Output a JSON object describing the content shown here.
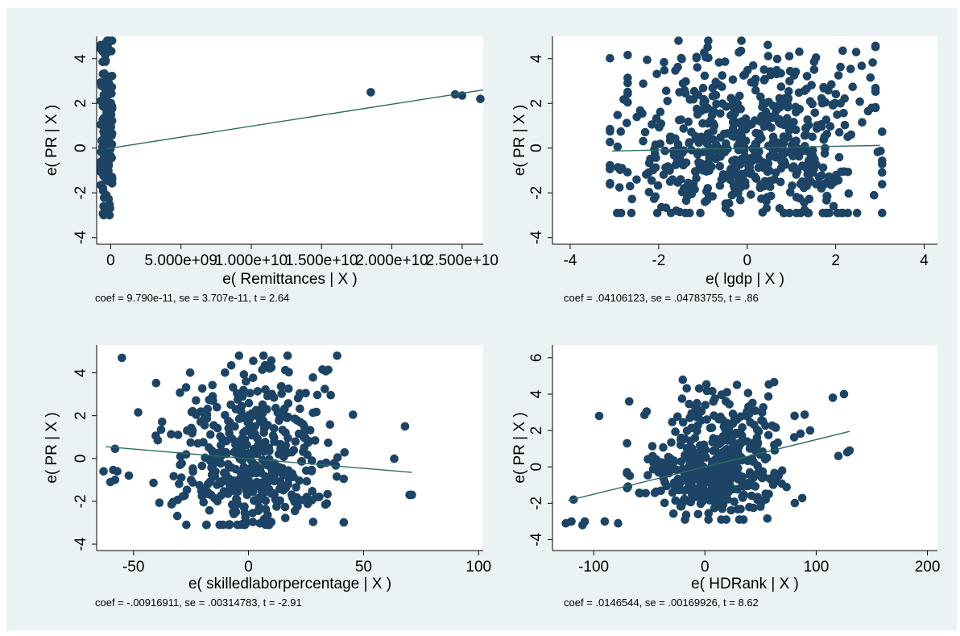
{
  "colors": {
    "figure_bg": "#eaf2f3",
    "marker": "#1d4464",
    "fit_line": "#2d6b63"
  },
  "chart_data": [
    {
      "type": "scatter",
      "xlabel": "e( Remittances | X )",
      "ylabel": "e( PR | X )",
      "caption": "coef = 9.790e-11, se = 3.707e-11, t = 2.64",
      "x_ticks": [
        "0",
        "5.000e+09",
        "1.000e+10",
        "1.500e+10",
        "2.000e+10",
        "2.500e+10"
      ],
      "x_tick_values": [
        0,
        5000000000,
        10000000000,
        15000000000,
        20000000000,
        25000000000
      ],
      "y_ticks": [
        "-4",
        "-2",
        "0",
        "2",
        "4"
      ],
      "xlim": [
        -1000000000,
        26500000000
      ],
      "ylim": [
        -4.3,
        5
      ],
      "fit": {
        "x": [
          -300000000,
          26500000000
        ],
        "y": [
          -0.03,
          2.6
        ]
      },
      "seed": 11,
      "clusters": [
        {
          "n": 150,
          "cx": -300000000,
          "sx": 260000000,
          "cy": 0.9,
          "sy": 2.3,
          "xmin": -700000000,
          "xmax": 100000000,
          "ymin": -3.0,
          "ymax": 4.8
        },
        {
          "n": 8,
          "cx": -250000000,
          "sx": 50000000,
          "cy": 4.6,
          "sy": 0.2,
          "xmin": -500000000,
          "xmax": 0,
          "ymin": 4.2,
          "ymax": 4.8
        }
      ],
      "points": [
        [
          18500000000,
          2.5
        ],
        [
          24500000000,
          2.4
        ],
        [
          25000000000,
          2.35
        ],
        [
          26300000000,
          2.2
        ]
      ]
    },
    {
      "type": "scatter",
      "xlabel": "e( lgdp | X )",
      "ylabel": "e( PR | X )",
      "caption": "coef = .04106123, se = .04783755, t = .86",
      "x_ticks": [
        "-4",
        "-2",
        "0",
        "2",
        "4"
      ],
      "x_tick_values": [
        -4,
        -2,
        0,
        2,
        4
      ],
      "y_ticks": [
        "-4",
        "-2",
        "0",
        "2",
        "4"
      ],
      "xlim": [
        -4.4,
        4.3
      ],
      "ylim": [
        -4.3,
        5
      ],
      "fit": {
        "x": [
          -3.05,
          3.0
        ],
        "y": [
          -0.13,
          0.12
        ]
      },
      "seed": 22,
      "clusters": [
        {
          "n": 480,
          "cx": 0,
          "sx": 1.35,
          "cy": -0.4,
          "sy": 1.55,
          "xmin": -3.1,
          "xmax": 3.05,
          "ymin": -2.9,
          "ymax": 4.8
        },
        {
          "n": 140,
          "cx": 0.1,
          "sx": 1.5,
          "cy": 2.6,
          "sy": 1.2,
          "xmin": -2.7,
          "xmax": 2.9,
          "ymin": 0.5,
          "ymax": 4.8
        }
      ],
      "points": []
    },
    {
      "type": "scatter",
      "xlabel": "e( skilledlaborpercentage | X )",
      "ylabel": "e( PR | X )",
      "caption": "coef = -.00916911, se = .00314783, t = -2.91",
      "x_ticks": [
        "-50",
        "0",
        "50",
        "100"
      ],
      "x_tick_values": [
        -50,
        0,
        50,
        100
      ],
      "y_ticks": [
        "-4",
        "-2",
        "0",
        "2",
        "4"
      ],
      "xlim": [
        -66,
        102
      ],
      "ylim": [
        -4.3,
        5.3
      ],
      "fit": {
        "x": [
          -62,
          71
        ],
        "y": [
          0.55,
          -0.65
        ]
      },
      "seed": 33,
      "clusters": [
        {
          "n": 360,
          "cx": 2,
          "sx": 17,
          "cy": -0.6,
          "sy": 1.4,
          "xmin": -62,
          "xmax": 71,
          "ymin": -3.1,
          "ymax": 4.8
        },
        {
          "n": 110,
          "cx": 3,
          "sx": 19,
          "cy": 2.4,
          "sy": 1.3,
          "xmin": -55,
          "xmax": 70,
          "ymin": 0.5,
          "ymax": 4.8
        }
      ],
      "points": [
        [
          -63,
          -0.6
        ],
        [
          -60,
          -1.1
        ],
        [
          -58,
          -1.0
        ],
        [
          -57,
          -0.6
        ],
        [
          -55,
          4.7
        ],
        [
          -52,
          -0.8
        ],
        [
          -58,
          0.45
        ],
        [
          68,
          1.5
        ],
        [
          70,
          -1.7
        ],
        [
          71,
          -1.7
        ]
      ]
    },
    {
      "type": "scatter",
      "xlabel": "e( HDRank | X )",
      "ylabel": "e( PR | X )",
      "caption": "coef = .0146544, se = .00169926, t = 8.62",
      "x_ticks": [
        "-100",
        "0",
        "100",
        "200"
      ],
      "x_tick_values": [
        -100,
        0,
        100,
        200
      ],
      "y_ticks": [
        "-4",
        "-2",
        "0",
        "2",
        "4",
        "6"
      ],
      "xlim": [
        -137,
        209
      ],
      "ylim": [
        -4.6,
        6.7
      ],
      "fit": {
        "x": [
          -123,
          130
        ],
        "y": [
          -1.85,
          1.95
        ]
      },
      "seed": 44,
      "clusters": [
        {
          "n": 360,
          "cx": 5,
          "sx": 32,
          "cy": -0.3,
          "sy": 1.3,
          "xmin": -70,
          "xmax": 90,
          "ymin": -2.9,
          "ymax": 5.1
        },
        {
          "n": 90,
          "cx": 20,
          "sx": 28,
          "cy": 2.6,
          "sy": 1.2,
          "xmin": -40,
          "xmax": 100,
          "ymin": 0.5,
          "ymax": 5.1
        }
      ],
      "points": [
        [
          -125,
          -3.1
        ],
        [
          -120,
          -3.0
        ],
        [
          -118,
          -1.8
        ],
        [
          -110,
          -3.2
        ],
        [
          -108,
          -3.0
        ],
        [
          -95,
          2.8
        ],
        [
          -90,
          -3.0
        ],
        [
          -78,
          -3.1
        ],
        [
          -68,
          3.6
        ],
        [
          115,
          3.8
        ],
        [
          120,
          0.6
        ],
        [
          125,
          4.0
        ],
        [
          128,
          0.8
        ],
        [
          130,
          0.9
        ]
      ]
    }
  ]
}
